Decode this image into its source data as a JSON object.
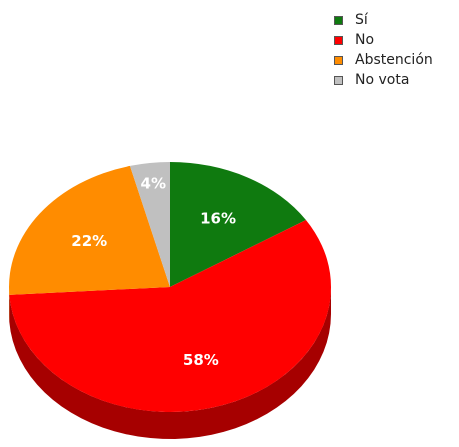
{
  "chart_data": {
    "type": "pie",
    "style": "3d",
    "title": "",
    "categories": [
      "Sí",
      "No",
      "Abstención",
      "No vota"
    ],
    "values": [
      16,
      58,
      22,
      4
    ],
    "data_labels": [
      "16%",
      "58%",
      "22%",
      "4%"
    ],
    "colors": [
      "#0f7a0f",
      "#ff0000",
      "#ff8c00",
      "#c0c0c0"
    ],
    "side_colors": [
      "#0a520a",
      "#a60000",
      "#b86400",
      "#8c8c8c"
    ],
    "legend_position": "top-right"
  }
}
